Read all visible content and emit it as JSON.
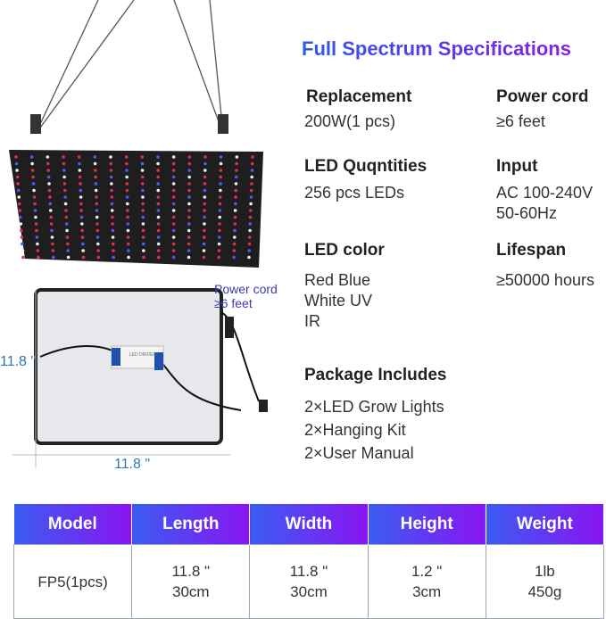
{
  "title": "Full Spectrum Specifications",
  "specs": [
    {
      "label": "Replacement",
      "value": "200W(1 pcs)"
    },
    {
      "label": "Power cord",
      "value": "≥6 feet"
    },
    {
      "label": "LED Quqntities",
      "value": "256 pcs LEDs"
    },
    {
      "label": "Input",
      "value": [
        "AC 100-240V",
        "50-60Hz"
      ]
    },
    {
      "label": "LED color",
      "value": [
        "Red Blue",
        "White UV",
        "IR"
      ]
    },
    {
      "label": "Lifespan",
      "value": "≥50000 hours"
    }
  ],
  "package": {
    "label": "Package Includes",
    "items": [
      "2×LED Grow Lights",
      "2×Hanging Kit",
      "2×User Manual"
    ]
  },
  "image_labels": {
    "power_cord": "Power cord",
    "cord_length": "≥6 feet",
    "height": "11.8 \"",
    "width": "11.8 \"",
    "driver": "LED DRIVER"
  },
  "table": {
    "headers": [
      "Model",
      "Length",
      "Width",
      "Height",
      "Weight"
    ],
    "row": [
      [
        "FP5(1pcs)"
      ],
      [
        "11.8 \"",
        "30cm"
      ],
      [
        "11.8 \"",
        "30cm"
      ],
      [
        "1.2 \"",
        "3cm"
      ],
      [
        "1lb",
        "450g"
      ]
    ]
  },
  "colors": {
    "gradient_start": "#3a5df2",
    "gradient_end": "#8a14f2",
    "dimension_text": "#2a7ab8"
  }
}
